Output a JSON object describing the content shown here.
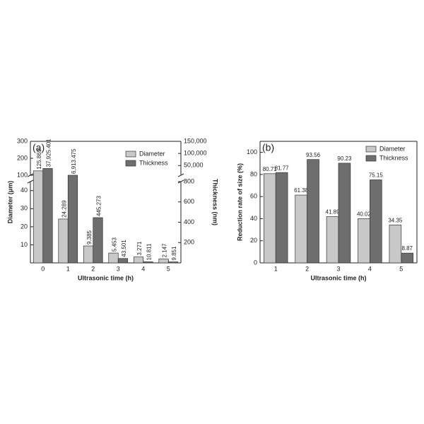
{
  "chart_data": [
    {
      "type": "bar",
      "panel": "(a)",
      "x_label": "Ultrasonic time (h)",
      "y_label": "Diameter (μm)",
      "y2_label": "Thickness (nm)",
      "categories": [
        "0",
        "1",
        "2",
        "3",
        "4",
        "5"
      ],
      "series": [
        {
          "name": "Diameter",
          "color": "#c8c8c8",
          "values": [
            125.869,
            24.289,
            9.385,
            5.453,
            3.271,
            2.147
          ]
        },
        {
          "name": "Thickness",
          "color": "#6e6e6e",
          "axis": "y2",
          "values": [
            37925.401,
            6913.475,
            445.273,
            43.501,
            10.811,
            9.851
          ],
          "value_labels": [
            "37,925.401",
            "6,913.475",
            "445.273",
            "43.501",
            "10.811",
            "9.851"
          ]
        }
      ],
      "ylim": [
        0,
        300
      ],
      "ybreak": [
        45,
        100
      ],
      "yticks": [
        10,
        20,
        30,
        40,
        100,
        200,
        300
      ],
      "y2lim": [
        0,
        150000
      ],
      "y2break": [
        800,
        10000
      ],
      "y2ticks": [
        200,
        400,
        600,
        800,
        {
          "value": 50000,
          "label": "50,000"
        },
        {
          "value": 100000,
          "label": "100,000"
        },
        {
          "value": 150000,
          "label": "150,000"
        }
      ],
      "legend": "upper right",
      "grid": false
    },
    {
      "type": "bar",
      "panel": "(b)",
      "x_label": "Ultrasonic time (h)",
      "y_label": "Reduction rate of size (%)",
      "categories": [
        "1",
        "2",
        "3",
        "4",
        "5"
      ],
      "series": [
        {
          "name": "Diameter",
          "color": "#c8c8c8",
          "values": [
            80.71,
            61.38,
            41.89,
            40.02,
            34.35
          ]
        },
        {
          "name": "Thickness",
          "color": "#6e6e6e",
          "values": [
            81.77,
            93.56,
            90.23,
            75.15,
            8.87
          ]
        }
      ],
      "ylim": [
        0,
        110
      ],
      "yticks": [
        0,
        20,
        40,
        60,
        80,
        100
      ],
      "legend": "upper right",
      "grid": false
    }
  ]
}
